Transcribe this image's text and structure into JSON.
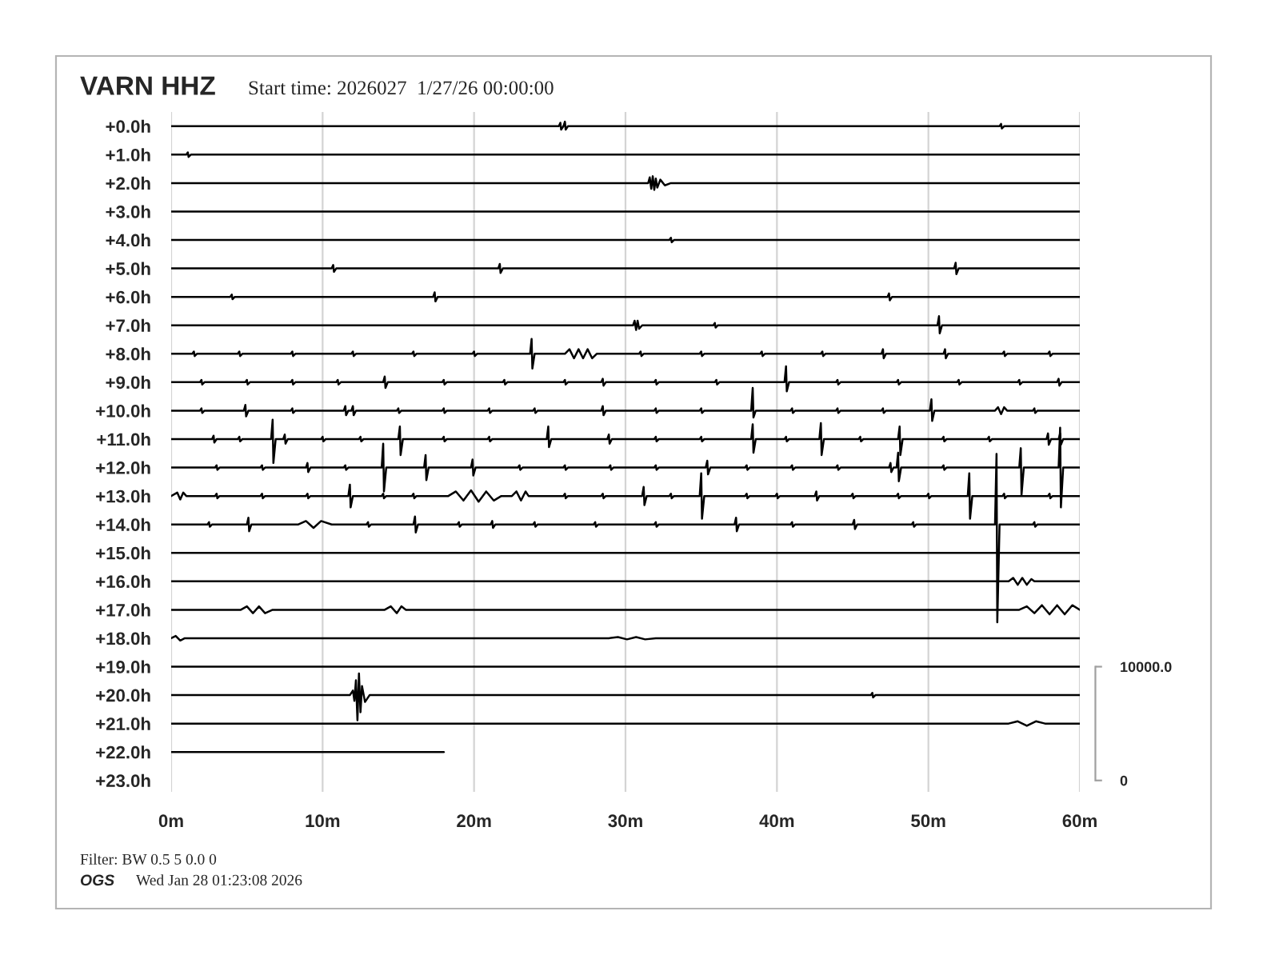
{
  "chart_data": {
    "type": "line",
    "title": "VARN HHZ",
    "subtitle": "Start time: 2026027  1/27/26 00:00:00",
    "xlim": [
      0,
      60
    ],
    "xticks": [
      {
        "value": 0,
        "label": "0m"
      },
      {
        "value": 10,
        "label": "10m"
      },
      {
        "value": 20,
        "label": "20m"
      },
      {
        "value": 30,
        "label": "30m"
      },
      {
        "value": 40,
        "label": "40m"
      },
      {
        "value": 50,
        "label": "50m"
      },
      {
        "value": 60,
        "label": "60m"
      }
    ],
    "ylim": [
      23.4,
      -0.5
    ],
    "yticks": [
      {
        "value": 0,
        "label": "+0.0h"
      },
      {
        "value": 1,
        "label": "+1.0h"
      },
      {
        "value": 2,
        "label": "+2.0h"
      },
      {
        "value": 3,
        "label": "+3.0h"
      },
      {
        "value": 4,
        "label": "+4.0h"
      },
      {
        "value": 5,
        "label": "+5.0h"
      },
      {
        "value": 6,
        "label": "+6.0h"
      },
      {
        "value": 7,
        "label": "+7.0h"
      },
      {
        "value": 8,
        "label": "+8.0h"
      },
      {
        "value": 9,
        "label": "+9.0h"
      },
      {
        "value": 10,
        "label": "+10.0h"
      },
      {
        "value": 11,
        "label": "+11.0h"
      },
      {
        "value": 12,
        "label": "+12.0h"
      },
      {
        "value": 13,
        "label": "+13.0h"
      },
      {
        "value": 14,
        "label": "+14.0h"
      },
      {
        "value": 15,
        "label": "+15.0h"
      },
      {
        "value": 16,
        "label": "+16.0h"
      },
      {
        "value": 17,
        "label": "+17.0h"
      },
      {
        "value": 18,
        "label": "+18.0h"
      },
      {
        "value": 19,
        "label": "+19.0h"
      },
      {
        "value": 20,
        "label": "+20.0h"
      },
      {
        "value": 21,
        "label": "+21.0h"
      },
      {
        "value": 22,
        "label": "+22.0h"
      },
      {
        "value": 23,
        "label": "+23.0h"
      }
    ],
    "y2lim": [
      -1000,
      58750
    ],
    "y2ticks": [
      0,
      {
        "value": 10000,
        "label": "10000.0"
      }
    ],
    "grid": "x",
    "annotations": [
      "Filter: BW 0.5 5 0.0 0",
      "OGS",
      "Wed Jan 28 01:23:08 2026"
    ],
    "series": [
      {
        "axis": "y2",
        "color": "#000000",
        "x": [
          0,
          25.6,
          25.7,
          25.75,
          25.9,
          26.0,
          26.05,
          26.2,
          54.7,
          54.8,
          54.85,
          55.0,
          60
        ],
        "values": [
          57500,
          57500,
          57800,
          57200,
          57500,
          57900,
          57200,
          57500,
          57500,
          57700,
          57300,
          57500,
          57500
        ]
      },
      {
        "axis": "y2",
        "color": "#000000",
        "x": [
          0,
          1.0,
          1.1,
          1.15,
          1.3,
          60
        ],
        "values": [
          55000,
          55000,
          55200,
          54800,
          55000,
          55000
        ]
      },
      {
        "axis": "y2",
        "color": "#000000",
        "x": [
          0,
          31.5,
          31.6,
          31.7,
          31.8,
          31.9,
          32.0,
          32.1,
          32.3,
          32.6,
          33.0,
          60
        ],
        "values": [
          52500,
          52500,
          53000,
          52000,
          53100,
          51900,
          52900,
          52100,
          52800,
          52300,
          52500,
          52500
        ]
      },
      {
        "axis": "y2",
        "color": "#000000",
        "x": [
          0,
          60
        ],
        "values": [
          50000,
          50000
        ]
      },
      {
        "axis": "y2",
        "color": "#000000",
        "x": [
          0,
          32.9,
          33.0,
          33.05,
          33.2,
          60
        ],
        "values": [
          47500,
          47500,
          47700,
          47300,
          47500,
          47500
        ]
      },
      {
        "axis": "y2",
        "color": "#000000",
        "x": [
          0,
          10.6,
          10.7,
          10.75,
          10.9,
          21.6,
          21.7,
          21.75,
          21.9,
          51.7,
          51.8,
          51.85,
          52.0,
          60
        ],
        "values": [
          45000,
          45000,
          45300,
          44700,
          45000,
          45000,
          45400,
          44600,
          45000,
          45000,
          45500,
          44500,
          45000,
          45000
        ]
      },
      {
        "axis": "y2",
        "color": "#000000",
        "x": [
          0,
          3.9,
          4.0,
          4.05,
          4.2,
          17.3,
          17.4,
          17.45,
          17.6,
          47.3,
          47.4,
          47.45,
          47.6,
          60
        ],
        "values": [
          42500,
          42500,
          42700,
          42300,
          42500,
          42500,
          42900,
          42100,
          42500,
          42500,
          42800,
          42200,
          42500,
          42500
        ]
      },
      {
        "axis": "y2",
        "color": "#000000",
        "x": [
          0,
          30.5,
          30.6,
          30.7,
          30.8,
          30.9,
          31.1,
          35.8,
          35.9,
          35.95,
          36.1,
          50.6,
          50.7,
          50.75,
          50.9,
          60
        ],
        "values": [
          40000,
          40000,
          40400,
          39600,
          40400,
          39700,
          40000,
          40000,
          40200,
          39800,
          40000,
          40000,
          40800,
          39300,
          40000,
          40000
        ]
      },
      {
        "axis": "y2",
        "color": "#000000",
        "x": [
          0,
          1.4,
          1.5,
          1.55,
          1.7,
          4.4,
          4.5,
          4.55,
          4.7,
          7.9,
          8.0,
          8.05,
          8.2,
          11.9,
          12.0,
          12.05,
          12.2,
          15.9,
          16.0,
          16.05,
          16.2,
          19.9,
          20.0,
          20.05,
          20.2,
          23.7,
          23.8,
          23.85,
          24.0,
          26.0,
          26.3,
          26.6,
          26.9,
          27.2,
          27.5,
          27.8,
          28.1,
          30.9,
          31.0,
          31.05,
          31.2,
          34.9,
          35.0,
          35.05,
          35.2,
          38.9,
          39.0,
          39.05,
          39.2,
          42.9,
          43.0,
          43.05,
          43.2,
          46.9,
          47.0,
          47.05,
          47.2,
          51.0,
          51.1,
          51.15,
          51.3,
          54.9,
          55.0,
          55.05,
          55.2,
          57.9,
          58.0,
          58.05,
          58.2,
          60
        ],
        "values": [
          37500,
          37500,
          37700,
          37300,
          37500,
          37500,
          37700,
          37300,
          37500,
          37500,
          37700,
          37300,
          37500,
          37500,
          37700,
          37300,
          37500,
          37500,
          37700,
          37300,
          37500,
          37500,
          37700,
          37300,
          37500,
          37500,
          38800,
          36200,
          37500,
          37500,
          37900,
          37100,
          37900,
          37100,
          37900,
          37100,
          37500,
          37500,
          37700,
          37300,
          37500,
          37500,
          37700,
          37300,
          37500,
          37500,
          37700,
          37300,
          37500,
          37500,
          37700,
          37300,
          37500,
          37500,
          37900,
          37100,
          37500,
          37500,
          37900,
          37100,
          37500,
          37500,
          37700,
          37300,
          37500,
          37500,
          37700,
          37300,
          37500,
          37500
        ]
      },
      {
        "axis": "y2",
        "color": "#000000",
        "x": [
          0,
          1.9,
          2.0,
          2.05,
          2.2,
          4.9,
          5.0,
          5.05,
          5.2,
          7.9,
          8.0,
          8.05,
          8.2,
          10.9,
          11.0,
          11.05,
          11.2,
          14.0,
          14.1,
          14.15,
          14.3,
          17.9,
          18.0,
          18.05,
          18.2,
          21.9,
          22.0,
          22.05,
          22.2,
          25.9,
          26.0,
          26.05,
          26.2,
          28.4,
          28.5,
          28.55,
          28.7,
          31.9,
          32.0,
          32.05,
          32.2,
          35.9,
          36.0,
          36.05,
          36.2,
          40.5,
          40.6,
          40.65,
          40.8,
          43.9,
          44.0,
          44.05,
          44.2,
          47.9,
          48.0,
          48.05,
          48.2,
          51.9,
          52.0,
          52.05,
          52.2,
          55.9,
          56.0,
          56.05,
          56.2,
          58.5,
          58.6,
          58.65,
          58.8,
          60
        ],
        "values": [
          35000,
          35000,
          35200,
          34800,
          35000,
          35000,
          35200,
          34800,
          35000,
          35000,
          35200,
          34800,
          35000,
          35000,
          35200,
          34800,
          35000,
          35000,
          35500,
          34500,
          35000,
          35000,
          35200,
          34800,
          35000,
          35000,
          35200,
          34800,
          35000,
          35000,
          35200,
          34800,
          35000,
          35000,
          35300,
          34700,
          35000,
          35000,
          35200,
          34800,
          35000,
          35000,
          35200,
          34800,
          35000,
          35000,
          36400,
          34200,
          35000,
          35000,
          35200,
          34800,
          35000,
          35000,
          35200,
          34800,
          35000,
          35000,
          35200,
          34800,
          35000,
          35000,
          35200,
          34800,
          35000,
          35000,
          35300,
          34700,
          35000,
          35000
        ]
      },
      {
        "axis": "y2",
        "color": "#000000",
        "x": [
          0,
          1.9,
          2.0,
          2.05,
          2.2,
          4.8,
          4.9,
          4.95,
          5.1,
          7.9,
          8.0,
          8.05,
          8.2,
          11.4,
          11.5,
          11.55,
          11.7,
          11.9,
          12.0,
          12.05,
          12.2,
          14.9,
          15.0,
          15.05,
          15.2,
          17.9,
          18.0,
          18.05,
          18.2,
          20.9,
          21.0,
          21.05,
          21.2,
          23.9,
          24.0,
          24.05,
          24.2,
          28.4,
          28.5,
          28.55,
          28.7,
          31.9,
          32.0,
          32.05,
          32.2,
          34.9,
          35.0,
          35.05,
          35.2,
          38.3,
          38.4,
          38.45,
          38.6,
          40.9,
          41.0,
          41.05,
          41.2,
          43.9,
          44.0,
          44.05,
          44.2,
          46.9,
          47.0,
          47.05,
          47.2,
          50.1,
          50.2,
          50.25,
          50.4,
          54.4,
          54.6,
          54.8,
          55.0,
          55.2,
          56.9,
          57.0,
          57.05,
          57.2,
          60
        ],
        "values": [
          32500,
          32500,
          32700,
          32300,
          32500,
          32500,
          33000,
          32000,
          32500,
          32500,
          32700,
          32300,
          32500,
          32500,
          32900,
          32100,
          32500,
          32500,
          32900,
          32100,
          32500,
          32500,
          32700,
          32300,
          32500,
          32500,
          32700,
          32300,
          32500,
          32500,
          32700,
          32300,
          32500,
          32500,
          32700,
          32300,
          32500,
          32500,
          32900,
          32100,
          32500,
          32500,
          32700,
          32300,
          32500,
          32500,
          32700,
          32300,
          32500,
          32500,
          34500,
          31900,
          32500,
          32500,
          32700,
          32300,
          32500,
          32500,
          32700,
          32300,
          32500,
          32500,
          32700,
          32300,
          32500,
          32500,
          33500,
          31600,
          32500,
          32500,
          32800,
          32200,
          32800,
          32500,
          32500,
          32700,
          32300,
          32500,
          32500
        ]
      },
      {
        "axis": "y2",
        "color": "#000000",
        "x": [
          0,
          2.7,
          2.8,
          2.85,
          3.0,
          4.4,
          4.5,
          4.55,
          4.7,
          6.6,
          6.7,
          6.75,
          6.9,
          7.4,
          7.5,
          7.55,
          7.7,
          9.9,
          10.0,
          10.05,
          10.2,
          12.4,
          12.5,
          12.55,
          12.7,
          15.0,
          15.1,
          15.15,
          15.3,
          17.9,
          18.0,
          18.05,
          18.2,
          20.9,
          21.0,
          21.05,
          21.2,
          24.8,
          24.9,
          24.95,
          25.1,
          28.8,
          28.9,
          28.95,
          29.1,
          31.9,
          32.0,
          32.05,
          32.2,
          34.9,
          35.0,
          35.05,
          35.2,
          38.3,
          38.4,
          38.45,
          38.6,
          40.5,
          40.6,
          40.65,
          40.8,
          42.8,
          42.9,
          42.95,
          43.1,
          45.4,
          45.5,
          45.55,
          45.7,
          48.0,
          48.1,
          48.15,
          48.3,
          50.9,
          51.0,
          51.05,
          51.2,
          53.9,
          54.0,
          54.05,
          54.2,
          57.8,
          57.9,
          57.95,
          58.1,
          58.6,
          58.7,
          58.75,
          58.9,
          60
        ],
        "values": [
          30000,
          30000,
          30300,
          29700,
          30000,
          30000,
          30200,
          29800,
          30000,
          30000,
          31700,
          27900,
          30000,
          30000,
          30400,
          29600,
          30000,
          30000,
          30200,
          29800,
          30000,
          30000,
          30200,
          29800,
          30000,
          30000,
          31100,
          28600,
          30000,
          30000,
          30200,
          29800,
          30000,
          30000,
          30200,
          29800,
          30000,
          30000,
          31100,
          29300,
          30000,
          30000,
          30400,
          29600,
          30000,
          30000,
          30200,
          29800,
          30000,
          30000,
          30200,
          29800,
          30000,
          30000,
          31300,
          28800,
          30000,
          30000,
          30200,
          29800,
          30000,
          30000,
          31400,
          28600,
          30000,
          30000,
          30200,
          29800,
          30000,
          30000,
          31100,
          28600,
          30000,
          30000,
          30200,
          29800,
          30000,
          30000,
          30200,
          29800,
          30000,
          30000,
          30500,
          29500,
          30000,
          30000,
          30500,
          29500,
          30000,
          30000
        ]
      },
      {
        "axis": "y2",
        "color": "#000000",
        "x": [
          0,
          2.9,
          3.0,
          3.05,
          3.2,
          5.9,
          6.0,
          6.05,
          6.2,
          8.9,
          9.0,
          9.05,
          9.2,
          11.4,
          11.5,
          11.55,
          11.7,
          13.9,
          14.0,
          14.05,
          14.2,
          16.7,
          16.8,
          16.85,
          17.0,
          19.8,
          19.9,
          19.95,
          20.1,
          22.9,
          23.0,
          23.05,
          23.2,
          25.9,
          26.0,
          26.05,
          26.2,
          28.9,
          29.0,
          29.05,
          29.2,
          31.9,
          32.0,
          32.05,
          32.2,
          35.3,
          35.4,
          35.45,
          35.6,
          37.9,
          38.0,
          38.05,
          38.2,
          40.9,
          41.0,
          41.05,
          41.2,
          43.9,
          44.0,
          44.05,
          44.2,
          47.4,
          47.5,
          47.55,
          47.7,
          47.9,
          48.0,
          48.05,
          48.2,
          50.9,
          51.0,
          51.05,
          51.2,
          56.0,
          56.1,
          56.15,
          56.3,
          58.6,
          58.7,
          58.75,
          58.9,
          60
        ],
        "values": [
          27500,
          27500,
          27700,
          27300,
          27500,
          27500,
          27700,
          27300,
          27500,
          27500,
          27900,
          27100,
          27500,
          27500,
          27700,
          27300,
          27500,
          27500,
          29600,
          25400,
          27500,
          27500,
          28600,
          26400,
          27500,
          27500,
          28200,
          26800,
          27500,
          27500,
          27700,
          27300,
          27500,
          27500,
          27700,
          27300,
          27500,
          27500,
          27700,
          27300,
          27500,
          27500,
          27700,
          27300,
          27500,
          27500,
          28100,
          26900,
          27500,
          27500,
          27700,
          27300,
          27500,
          27500,
          27700,
          27300,
          27500,
          27500,
          27700,
          27300,
          27500,
          27500,
          27900,
          27100,
          27500,
          27500,
          28800,
          26300,
          27500,
          27500,
          27700,
          27300,
          27500,
          27500,
          29200,
          25100,
          27500,
          27500,
          31000,
          24000,
          27500,
          27500
        ]
      },
      {
        "axis": "y2",
        "color": "#000000",
        "x": [
          0,
          0.4,
          0.6,
          0.8,
          1.0,
          2.9,
          3.0,
          3.05,
          3.2,
          5.9,
          6.0,
          6.05,
          6.2,
          8.9,
          9.0,
          9.05,
          9.2,
          11.7,
          11.8,
          11.85,
          12.0,
          13.9,
          14.0,
          14.05,
          14.2,
          15.9,
          16.0,
          16.05,
          16.2,
          18.3,
          18.8,
          19.3,
          19.8,
          20.3,
          20.8,
          21.3,
          21.8,
          22.5,
          22.8,
          23.1,
          23.4,
          23.6,
          25.9,
          26.0,
          26.05,
          26.2,
          28.4,
          28.5,
          28.55,
          28.7,
          31.1,
          31.2,
          31.25,
          31.4,
          32.9,
          33.0,
          33.05,
          33.2,
          34.9,
          35.0,
          35.05,
          35.2,
          37.9,
          38.0,
          38.05,
          38.2,
          39.9,
          40.0,
          40.05,
          40.2,
          42.5,
          42.6,
          42.65,
          42.8,
          44.9,
          45.0,
          45.05,
          45.2,
          47.9,
          48.0,
          48.05,
          48.2,
          49.9,
          50.0,
          50.05,
          50.2,
          52.6,
          52.7,
          52.75,
          52.9,
          54.9,
          55.0,
          55.05,
          55.2,
          57.9,
          58.0,
          58.05,
          58.2,
          60
        ],
        "values": [
          25000,
          25300,
          24700,
          25300,
          25000,
          25000,
          25200,
          24800,
          25000,
          25000,
          25200,
          24800,
          25000,
          25000,
          25200,
          24800,
          25000,
          25000,
          26000,
          24000,
          25000,
          25000,
          25200,
          24800,
          25000,
          25000,
          25200,
          24800,
          25000,
          25000,
          25400,
          24600,
          25500,
          24500,
          25400,
          24600,
          25000,
          25000,
          25400,
          24600,
          25400,
          25000,
          25000,
          25200,
          24800,
          25000,
          25000,
          25200,
          24800,
          25000,
          25000,
          25800,
          24200,
          25000,
          25000,
          25200,
          24800,
          25000,
          25000,
          27000,
          23000,
          25000,
          25000,
          25200,
          24800,
          25000,
          25000,
          25200,
          24800,
          25000,
          25000,
          25400,
          24600,
          25000,
          25000,
          25200,
          24800,
          25000,
          25000,
          25200,
          24800,
          25000,
          25000,
          25200,
          24800,
          25000,
          25000,
          27000,
          23000,
          25000,
          25000,
          25200,
          24800,
          25000,
          25000,
          25200,
          24800,
          25000,
          25000
        ]
      },
      {
        "axis": "y2",
        "color": "#000000",
        "x": [
          0,
          2.4,
          2.5,
          2.55,
          2.7,
          5.0,
          5.1,
          5.15,
          5.3,
          8.4,
          8.9,
          9.4,
          9.9,
          10.6,
          12.9,
          13.0,
          13.05,
          13.2,
          16.0,
          16.1,
          16.15,
          16.3,
          18.9,
          19.0,
          19.05,
          19.2,
          21.1,
          21.2,
          21.25,
          21.4,
          23.9,
          24.0,
          24.05,
          24.2,
          27.9,
          28.0,
          28.05,
          28.2,
          31.9,
          32.0,
          32.05,
          32.2,
          37.2,
          37.3,
          37.35,
          37.5,
          40.9,
          41.0,
          41.05,
          41.2,
          45.0,
          45.1,
          45.15,
          45.3,
          48.9,
          49.0,
          49.05,
          49.2,
          54.4,
          54.5,
          54.55,
          54.7,
          56.9,
          57.0,
          57.05,
          57.2,
          60
        ],
        "values": [
          22500,
          22500,
          22700,
          22300,
          22500,
          22500,
          23100,
          21900,
          22500,
          22500,
          22800,
          22200,
          22800,
          22500,
          22500,
          22700,
          22300,
          22500,
          22500,
          23200,
          21800,
          22500,
          22500,
          22700,
          22300,
          22500,
          22500,
          22800,
          22200,
          22500,
          22500,
          22700,
          22300,
          22500,
          22500,
          22700,
          22300,
          22500,
          22500,
          22700,
          22300,
          22500,
          22500,
          23100,
          21900,
          22500,
          22500,
          22700,
          22300,
          22500,
          22500,
          22900,
          22100,
          22500,
          22500,
          22700,
          22300,
          22500,
          22500,
          28700,
          13900,
          22500,
          22500,
          22700,
          22300,
          22500,
          22500
        ]
      },
      {
        "axis": "y2",
        "color": "#000000",
        "x": [
          0,
          60
        ],
        "values": [
          20000,
          20000
        ]
      },
      {
        "axis": "y2",
        "color": "#000000",
        "x": [
          0,
          55.3,
          55.6,
          55.9,
          56.2,
          56.5,
          56.8,
          57.0,
          60
        ],
        "values": [
          17500,
          17500,
          17800,
          17200,
          17800,
          17200,
          17700,
          17500,
          17500
        ]
      },
      {
        "axis": "y2",
        "color": "#000000",
        "x": [
          0,
          4.6,
          5.0,
          5.4,
          5.8,
          6.2,
          6.7,
          14.1,
          14.5,
          14.9,
          15.2,
          15.5,
          56.0,
          56.5,
          57.0,
          57.5,
          58.0,
          58.5,
          59.0,
          59.5,
          60
        ],
        "values": [
          15000,
          15000,
          15300,
          14700,
          15300,
          14700,
          15000,
          15000,
          15300,
          14700,
          15300,
          15000,
          15000,
          15300,
          14700,
          15400,
          14600,
          15400,
          14600,
          15400,
          15000
        ]
      },
      {
        "axis": "y2",
        "color": "#000000",
        "x": [
          0,
          0.3,
          0.6,
          0.9,
          28.9,
          29.5,
          30.1,
          30.7,
          31.3,
          32,
          60
        ],
        "values": [
          12500,
          12700,
          12300,
          12500,
          12500,
          12600,
          12400,
          12600,
          12400,
          12500,
          12500
        ]
      },
      {
        "axis": "y2",
        "color": "#000000",
        "x": [
          0,
          60
        ],
        "values": [
          10000,
          10000
        ]
      },
      {
        "axis": "y2",
        "color": "#000000",
        "x": [
          0,
          11.8,
          12.0,
          12.1,
          12.2,
          12.3,
          12.4,
          12.5,
          12.6,
          12.8,
          13.1,
          46.2,
          46.3,
          46.35,
          46.5,
          60
        ],
        "values": [
          7500,
          7500,
          7900,
          7000,
          8800,
          5300,
          9400,
          6000,
          8300,
          6900,
          7500,
          7500,
          7700,
          7300,
          7500,
          7500
        ]
      },
      {
        "axis": "y2",
        "color": "#000000",
        "x": [
          0,
          55.3,
          55.9,
          56.5,
          57.1,
          57.7,
          60
        ],
        "values": [
          5000,
          5000,
          5200,
          4800,
          5200,
          5000,
          5000
        ]
      },
      {
        "axis": "y2",
        "color": "#000000",
        "x": [
          0,
          18
        ],
        "values": [
          2500,
          2500
        ]
      }
    ]
  }
}
